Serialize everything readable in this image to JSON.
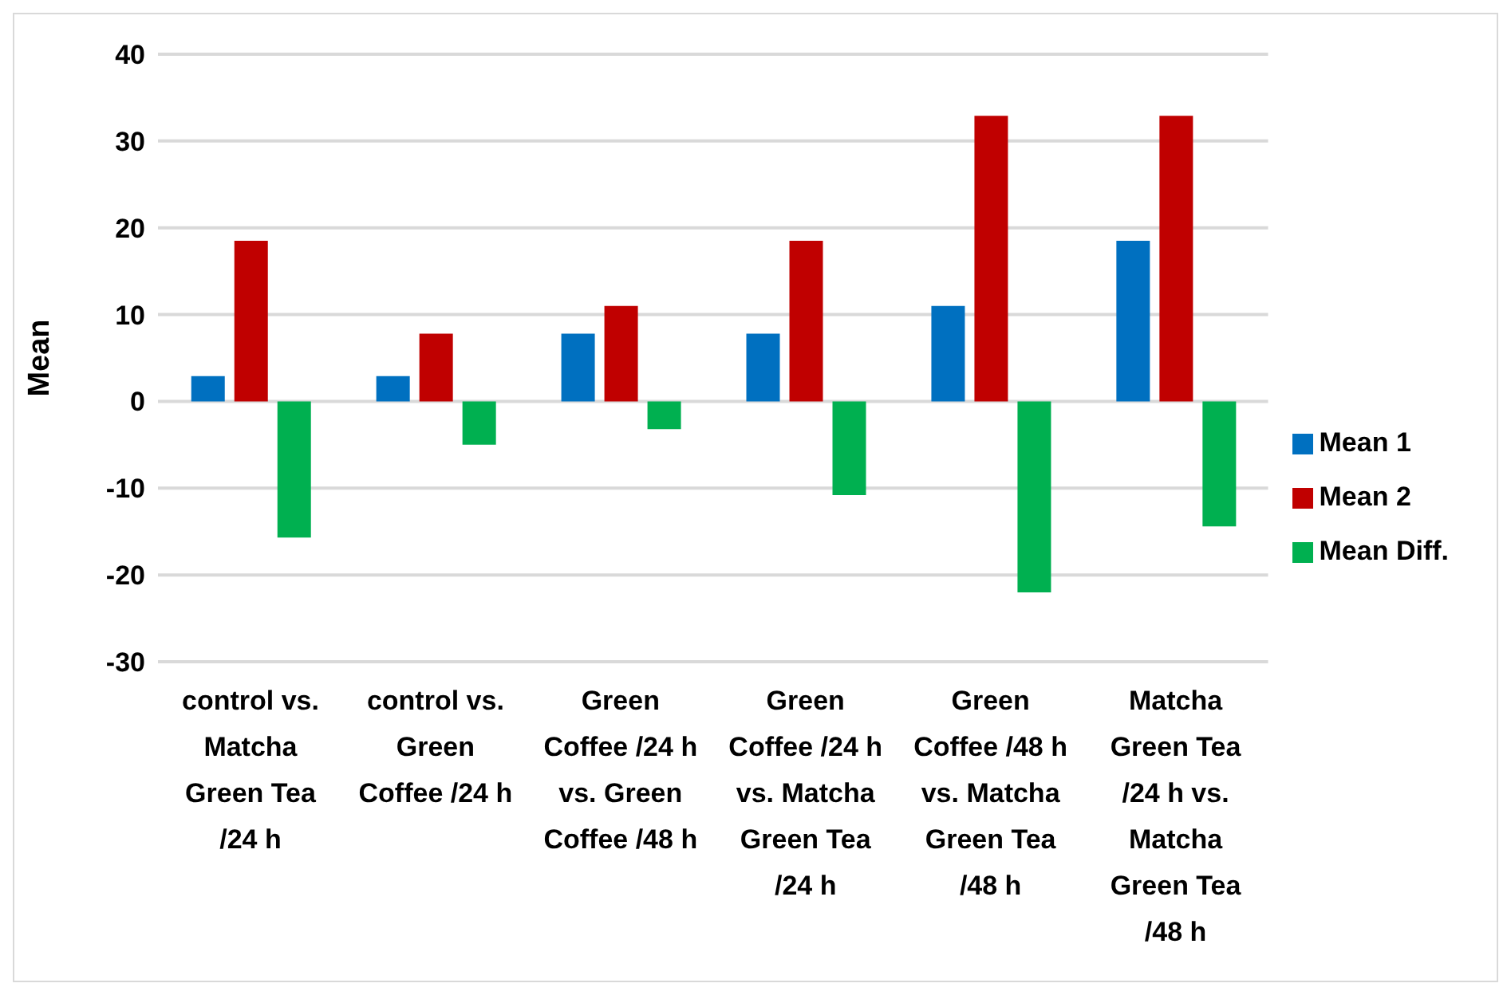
{
  "chart_data": {
    "type": "bar",
    "ylabel": "Mean",
    "categories": [
      "control vs. Matcha Green Tea /24 h",
      "control vs. Green Coffee /24 h",
      "Green Coffee /24 h vs. Green Coffee /48 h",
      "Green Coffee /24 h vs. Matcha Green Tea /24 h",
      "Green Coffee /48 h vs. Matcha Green Tea /48 h",
      "Matcha Green Tea /24 h vs. Matcha Green Tea /48 h"
    ],
    "series": [
      {
        "name": "Mean 1",
        "color": "#0070c0",
        "values": [
          2.9,
          2.9,
          7.8,
          7.8,
          11.0,
          18.5
        ]
      },
      {
        "name": "Mean 2",
        "color": "#c00000",
        "values": [
          18.5,
          7.8,
          11.0,
          18.5,
          32.9,
          32.9
        ]
      },
      {
        "name": "Mean Diff.",
        "color": "#00b050",
        "values": [
          -15.7,
          -5.0,
          -3.2,
          -10.8,
          -22.0,
          -14.4
        ]
      }
    ],
    "ylim": [
      -30,
      40
    ],
    "yticks": [
      -30,
      -20,
      -10,
      0,
      10,
      20,
      30,
      40
    ],
    "grid": "y",
    "legend": "right"
  }
}
